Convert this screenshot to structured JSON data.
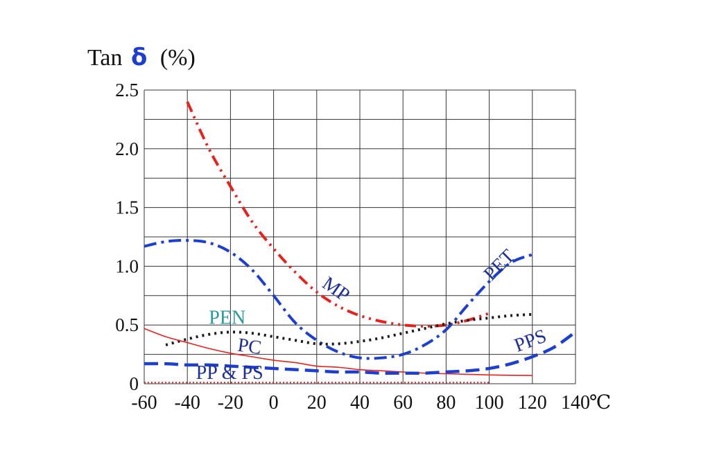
{
  "chart_data": {
    "type": "line",
    "title": "",
    "ylabel": {
      "prefix": "Tan",
      "symbol": "δ",
      "unit": "(%)"
    },
    "xlabel": "",
    "x_unit": "℃",
    "xlim": [
      -60,
      140
    ],
    "ylim": [
      0,
      2.5
    ],
    "x_ticks": [
      "-60",
      "-40",
      "-20",
      "0",
      "20",
      "40",
      "60",
      "80",
      "100",
      "120",
      "140"
    ],
    "y_ticks": [
      "0",
      "0.5",
      "1.0",
      "1.5",
      "2.0",
      "2.5"
    ],
    "grid": true,
    "legend": "none",
    "series": [
      {
        "name": "MP",
        "color": "#e8211c",
        "style": "dash-dot-dot",
        "points": [
          [
            -40,
            2.4
          ],
          [
            -30,
            2.0
          ],
          [
            -20,
            1.68
          ],
          [
            -10,
            1.38
          ],
          [
            0,
            1.15
          ],
          [
            10,
            0.95
          ],
          [
            20,
            0.78
          ],
          [
            30,
            0.66
          ],
          [
            40,
            0.58
          ],
          [
            50,
            0.53
          ],
          [
            60,
            0.5
          ],
          [
            70,
            0.49
          ],
          [
            80,
            0.5
          ],
          [
            90,
            0.54
          ],
          [
            100,
            0.6
          ]
        ]
      },
      {
        "name": "PET",
        "color": "#1c3fd1",
        "style": "dash-dot",
        "points": [
          [
            -60,
            1.17
          ],
          [
            -50,
            1.21
          ],
          [
            -40,
            1.22
          ],
          [
            -30,
            1.2
          ],
          [
            -20,
            1.12
          ],
          [
            -10,
            0.97
          ],
          [
            0,
            0.75
          ],
          [
            10,
            0.52
          ],
          [
            20,
            0.37
          ],
          [
            30,
            0.27
          ],
          [
            40,
            0.22
          ],
          [
            50,
            0.22
          ],
          [
            60,
            0.25
          ],
          [
            70,
            0.33
          ],
          [
            80,
            0.46
          ],
          [
            90,
            0.67
          ],
          [
            100,
            0.87
          ],
          [
            110,
            1.03
          ],
          [
            120,
            1.1
          ]
        ]
      },
      {
        "name": "PEN",
        "color": "#1a1a1a",
        "style": "dotted",
        "points": [
          [
            -50,
            0.33
          ],
          [
            -40,
            0.38
          ],
          [
            -30,
            0.42
          ],
          [
            -20,
            0.44
          ],
          [
            -10,
            0.43
          ],
          [
            0,
            0.4
          ],
          [
            10,
            0.37
          ],
          [
            20,
            0.34
          ],
          [
            30,
            0.34
          ],
          [
            40,
            0.36
          ],
          [
            50,
            0.39
          ],
          [
            60,
            0.43
          ],
          [
            70,
            0.47
          ],
          [
            80,
            0.51
          ],
          [
            90,
            0.54
          ],
          [
            100,
            0.56
          ],
          [
            110,
            0.58
          ],
          [
            120,
            0.59
          ]
        ]
      },
      {
        "name": "PC",
        "color": "#e8211c",
        "style": "solid",
        "points": [
          [
            -60,
            0.47
          ],
          [
            -50,
            0.4
          ],
          [
            -40,
            0.35
          ],
          [
            -30,
            0.3
          ],
          [
            -20,
            0.26
          ],
          [
            -10,
            0.23
          ],
          [
            0,
            0.2
          ],
          [
            10,
            0.18
          ],
          [
            20,
            0.15
          ],
          [
            30,
            0.14
          ],
          [
            40,
            0.12
          ],
          [
            50,
            0.11
          ],
          [
            60,
            0.1
          ],
          [
            70,
            0.09
          ],
          [
            80,
            0.085
          ],
          [
            90,
            0.08
          ],
          [
            100,
            0.075
          ],
          [
            110,
            0.072
          ],
          [
            120,
            0.07
          ]
        ]
      },
      {
        "name": "PPS",
        "color": "#1c3fd1",
        "style": "dashed",
        "points": [
          [
            -60,
            0.17
          ],
          [
            -50,
            0.17
          ],
          [
            -40,
            0.16
          ],
          [
            -30,
            0.16
          ],
          [
            -20,
            0.15
          ],
          [
            -10,
            0.14
          ],
          [
            0,
            0.13
          ],
          [
            10,
            0.12
          ],
          [
            20,
            0.11
          ],
          [
            30,
            0.1
          ],
          [
            40,
            0.1
          ],
          [
            50,
            0.09
          ],
          [
            60,
            0.09
          ],
          [
            70,
            0.09
          ],
          [
            80,
            0.1
          ],
          [
            90,
            0.11
          ],
          [
            100,
            0.13
          ],
          [
            110,
            0.17
          ],
          [
            120,
            0.23
          ],
          [
            130,
            0.31
          ],
          [
            140,
            0.44
          ]
        ]
      },
      {
        "name": "PP & PS",
        "color": "#e8211c",
        "style": "fine-dotted",
        "points": [
          [
            -60,
            0.01
          ],
          [
            -40,
            0.01
          ],
          [
            -20,
            0.01
          ],
          [
            0,
            0.01
          ],
          [
            20,
            0.01
          ],
          [
            40,
            0.01
          ],
          [
            60,
            0.01
          ],
          [
            80,
            0.01
          ],
          [
            100,
            0.01
          ]
        ]
      }
    ],
    "annotations": [
      {
        "text": "MP",
        "x": 22,
        "y": 0.83,
        "color": "#1c2f9a",
        "rotate": 35
      },
      {
        "text": "PET",
        "x": 101,
        "y": 0.87,
        "color": "#1c2f9a",
        "rotate": -45
      },
      {
        "text": "PEN",
        "x": -30,
        "y": 0.51,
        "color": "#2a9a9a",
        "rotate": 0
      },
      {
        "text": "PC",
        "x": -17,
        "y": 0.28,
        "color": "#1c2f9a",
        "rotate": 8
      },
      {
        "text": "PPS",
        "x": 113,
        "y": 0.27,
        "color": "#1c2f9a",
        "rotate": -20
      },
      {
        "text": "PP & PS",
        "x": -36,
        "y": 0.04,
        "color": "#1c2f9a",
        "rotate": 0
      }
    ]
  }
}
